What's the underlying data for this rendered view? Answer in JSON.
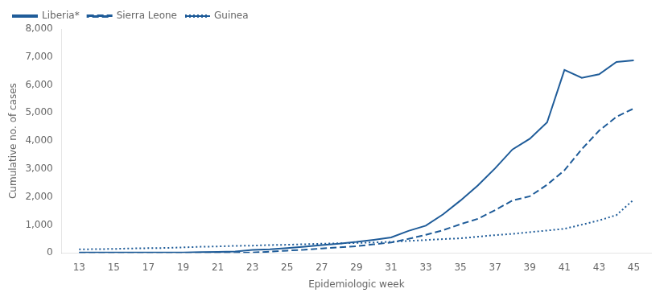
{
  "chart_data": {
    "type": "line",
    "xlabel": "Epidemiologic week",
    "ylabel": "Cumulative no. of cases",
    "x": [
      13,
      14,
      15,
      16,
      17,
      18,
      19,
      20,
      21,
      22,
      23,
      24,
      25,
      26,
      27,
      28,
      29,
      30,
      31,
      32,
      33,
      34,
      35,
      36,
      37,
      38,
      39,
      40,
      41,
      42,
      43,
      44,
      45
    ],
    "series": [
      {
        "name": "Liberia*",
        "color": "#1F5C99",
        "line_style": "solid",
        "values": [
          13,
          13,
          14,
          14,
          14,
          14,
          14,
          27,
          35,
          51,
          107,
          131,
          172,
          224,
          282,
          329,
          391,
          468,
          554,
          786,
          972,
          1378,
          1871,
          2407,
          3022,
          3696,
          4076,
          4665,
          6535,
          6253,
          6383,
          6822,
          6878
        ]
      },
      {
        "name": "Sierra Leone",
        "color": "#1F5C99",
        "line_style": "dashed",
        "values": [
          0,
          0,
          0,
          0,
          0,
          0,
          0,
          0,
          0,
          0,
          13,
          40,
          81,
          112,
          158,
          196,
          239,
          305,
          373,
          499,
          646,
          810,
          1026,
          1216,
          1529,
          1871,
          2021,
          2437,
          2950,
          3706,
          4368,
          4862,
          5160
        ]
      },
      {
        "name": "Guinea",
        "color": "#1F5C99",
        "line_style": "dotted",
        "values": [
          127,
          134,
          143,
          159,
          168,
          176,
          197,
          218,
          231,
          251,
          260,
          281,
          291,
          309,
          328,
          344,
          355,
          373,
          397,
          427,
          460,
          495,
          519,
          579,
          635,
          681,
          739,
          800,
          862,
          1008,
          1160,
          1350,
          1906
        ]
      }
    ],
    "xlim": [
      12,
      46
    ],
    "xticks": [
      13,
      15,
      17,
      19,
      21,
      23,
      25,
      27,
      29,
      31,
      33,
      35,
      37,
      39,
      41,
      43,
      45
    ],
    "ylim": [
      0,
      8000
    ],
    "yticks": [
      0,
      {
        "value": 1000,
        "label": "1,000"
      },
      {
        "value": 2000,
        "label": "2,000"
      },
      {
        "value": 3000,
        "label": "3,000"
      },
      {
        "value": 4000,
        "label": "4,000"
      },
      {
        "value": 5000,
        "label": "5,000"
      },
      {
        "value": 6000,
        "label": "6,000"
      },
      {
        "value": 7000,
        "label": "7,000"
      },
      {
        "value": 8000,
        "label": "8,000"
      }
    ],
    "grid": false,
    "legend": "upper left"
  }
}
